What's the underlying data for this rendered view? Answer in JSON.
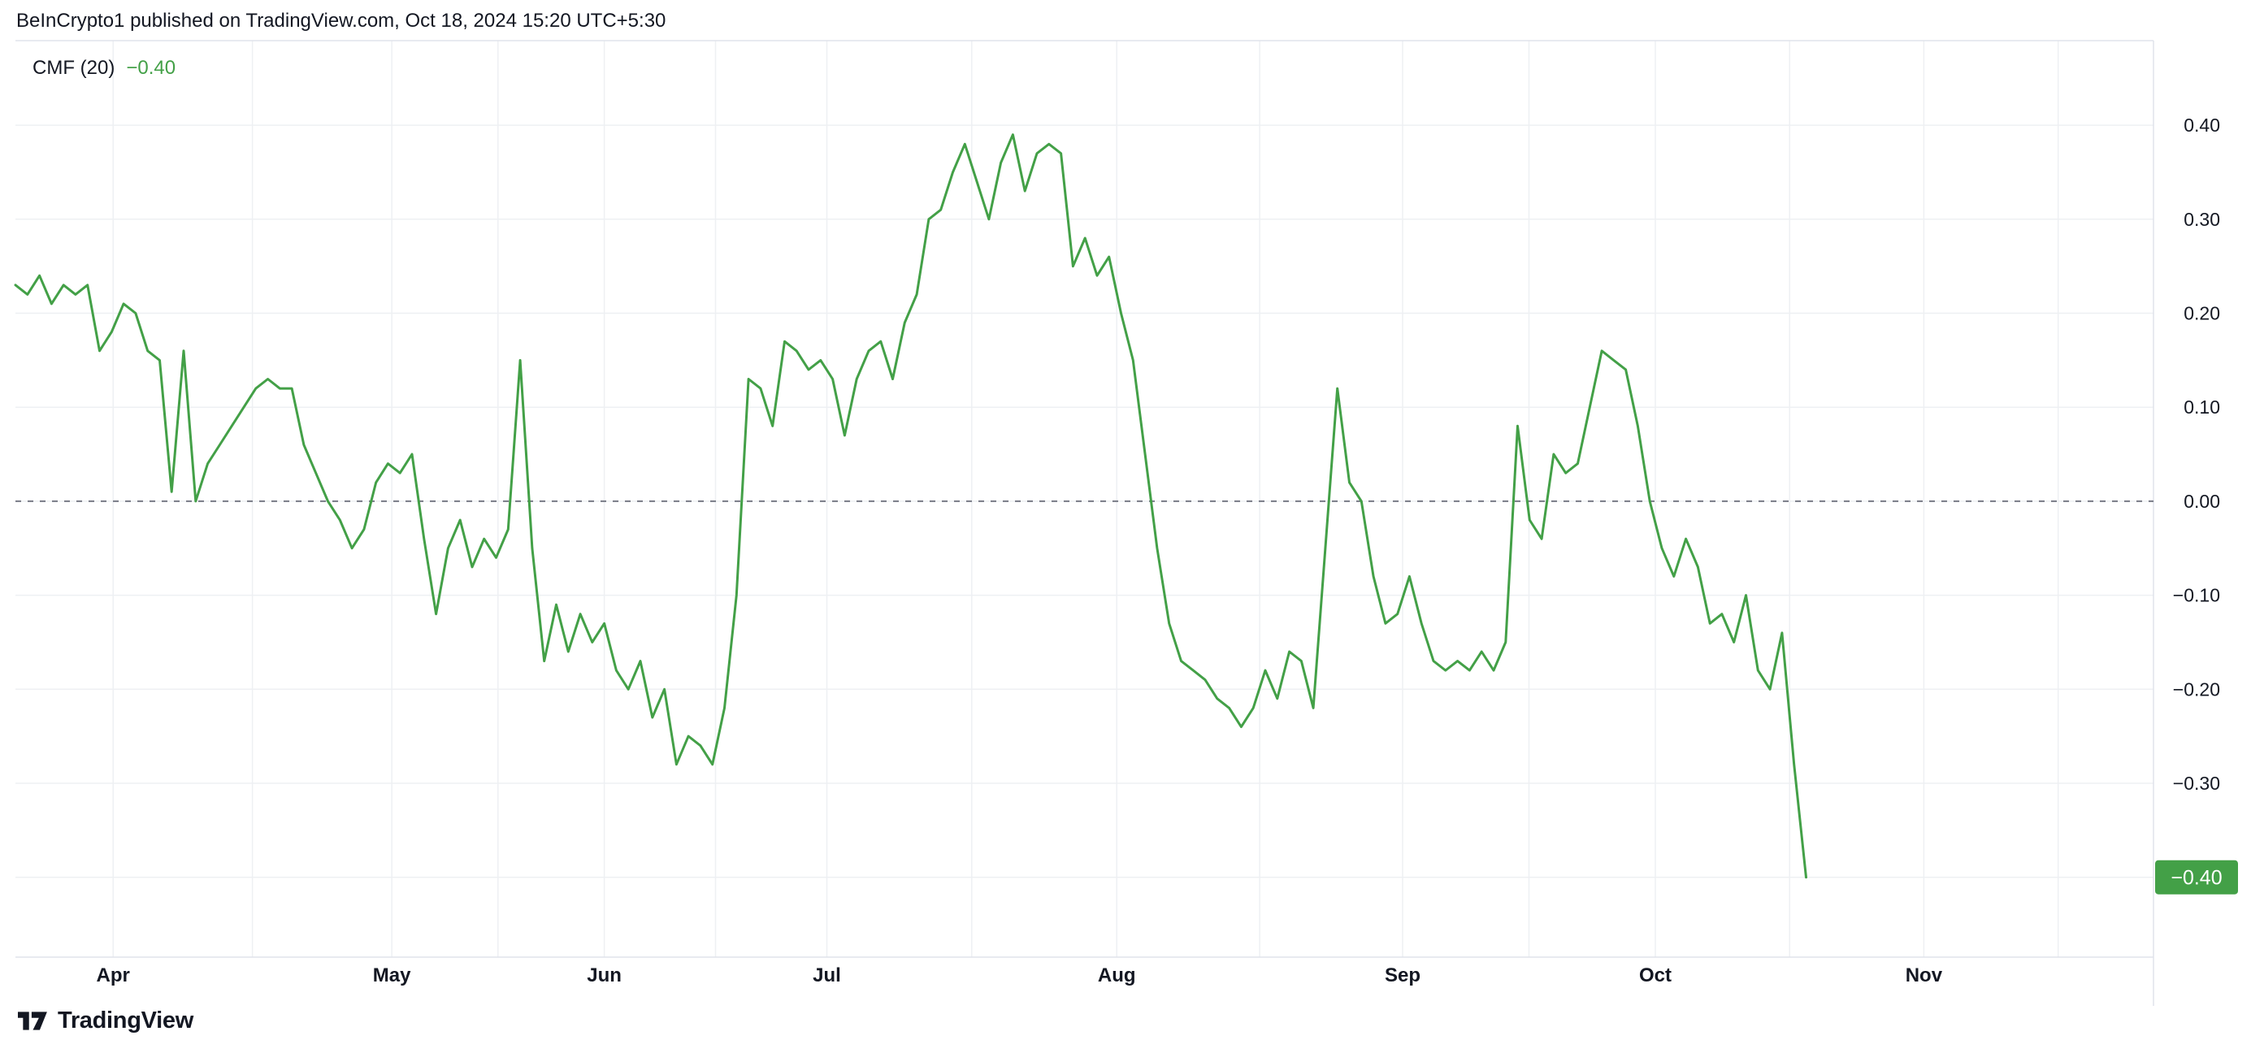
{
  "header": {
    "title": "BeInCrypto1 published on TradingView.com, Oct 18, 2024 15:20 UTC+5:30"
  },
  "legend": {
    "indicator": "CMF (20)",
    "value": "−0.40"
  },
  "footer": {
    "brand": "TradingView"
  },
  "colors": {
    "line": "#43a047",
    "badge_bg": "#43a047",
    "badge_text": "#ffffff",
    "grid": "#eef0f3",
    "border": "#e0e3eb",
    "zero_line": "#787b86",
    "axis_text": "#131722"
  },
  "chart_data": {
    "type": "line",
    "title": "CMF (20)",
    "xlabel": "",
    "ylabel": "",
    "legend_position": "top-left",
    "grid": true,
    "ylim": [
      -0.485,
      0.49
    ],
    "y_ticks": [
      0.4,
      0.3,
      0.2,
      0.1,
      0,
      -0.1,
      -0.2,
      -0.3,
      -0.4
    ],
    "zero_line_value": 0,
    "badge_label": "−0.40",
    "last_value": -0.4,
    "x_months": [
      {
        "label": "Apr",
        "f": 0.0457
      },
      {
        "label": "May",
        "f": 0.176
      },
      {
        "label": "Jun",
        "f": 0.2754
      },
      {
        "label": "Jul",
        "f": 0.3795
      },
      {
        "label": "Aug",
        "f": 0.5151
      },
      {
        "label": "Sep",
        "f": 0.6488
      },
      {
        "label": "Oct",
        "f": 0.767
      },
      {
        "label": "Nov",
        "f": 0.8926
      }
    ],
    "line_end_fraction": 0.8375,
    "values": [
      0.23,
      0.22,
      0.24,
      0.21,
      0.23,
      0.22,
      0.23,
      0.16,
      0.18,
      0.21,
      0.2,
      0.16,
      0.15,
      0.01,
      0.16,
      0.0,
      0.04,
      0.06,
      0.08,
      0.1,
      0.12,
      0.13,
      0.12,
      0.12,
      0.06,
      0.03,
      0.0,
      -0.02,
      -0.05,
      -0.03,
      0.02,
      0.04,
      0.03,
      0.05,
      -0.04,
      -0.12,
      -0.05,
      -0.02,
      -0.07,
      -0.04,
      -0.06,
      -0.03,
      0.15,
      -0.05,
      -0.17,
      -0.11,
      -0.16,
      -0.12,
      -0.15,
      -0.13,
      -0.18,
      -0.2,
      -0.17,
      -0.23,
      -0.2,
      -0.28,
      -0.25,
      -0.26,
      -0.28,
      -0.22,
      -0.1,
      0.13,
      0.12,
      0.08,
      0.17,
      0.16,
      0.14,
      0.15,
      0.13,
      0.07,
      0.13,
      0.16,
      0.17,
      0.13,
      0.19,
      0.22,
      0.3,
      0.31,
      0.35,
      0.38,
      0.34,
      0.3,
      0.36,
      0.39,
      0.33,
      0.37,
      0.38,
      0.37,
      0.25,
      0.28,
      0.24,
      0.26,
      0.2,
      0.15,
      0.05,
      -0.05,
      -0.13,
      -0.17,
      -0.18,
      -0.19,
      -0.21,
      -0.22,
      -0.24,
      -0.22,
      -0.18,
      -0.21,
      -0.16,
      -0.17,
      -0.22,
      -0.05,
      0.12,
      0.02,
      0.0,
      -0.08,
      -0.13,
      -0.12,
      -0.08,
      -0.13,
      -0.17,
      -0.18,
      -0.17,
      -0.18,
      -0.16,
      -0.18,
      -0.15,
      0.08,
      -0.02,
      -0.04,
      0.05,
      0.03,
      0.04,
      0.1,
      0.16,
      0.15,
      0.14,
      0.08,
      0.0,
      -0.05,
      -0.08,
      -0.04,
      -0.07,
      -0.13,
      -0.12,
      -0.15,
      -0.1,
      -0.18,
      -0.2,
      -0.14,
      -0.28,
      -0.4
    ]
  }
}
